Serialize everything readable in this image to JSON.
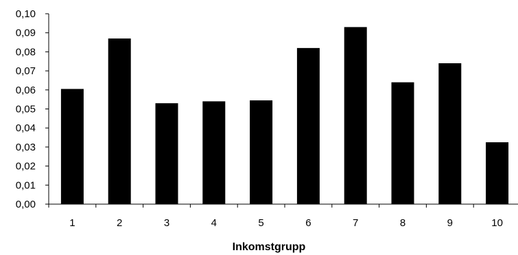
{
  "chart_data": {
    "type": "bar",
    "title": "",
    "xlabel": "Inkomstgrupp",
    "ylabel": "",
    "categories": [
      "1",
      "2",
      "3",
      "4",
      "5",
      "6",
      "7",
      "8",
      "9",
      "10"
    ],
    "values": [
      0.0605,
      0.087,
      0.053,
      0.054,
      0.0545,
      0.082,
      0.093,
      0.064,
      0.074,
      0.0325
    ],
    "ylim": [
      0,
      0.1
    ],
    "yticks": [
      0.0,
      0.01,
      0.02,
      0.03,
      0.04,
      0.05,
      0.06,
      0.07,
      0.08,
      0.09,
      0.1
    ],
    "ytick_labels": [
      "0,00",
      "0,01",
      "0,02",
      "0,03",
      "0,04",
      "0,05",
      "0,06",
      "0,07",
      "0,08",
      "0,09",
      "0,10"
    ],
    "bar_color": "#000000",
    "grid": false,
    "legend": "none"
  }
}
